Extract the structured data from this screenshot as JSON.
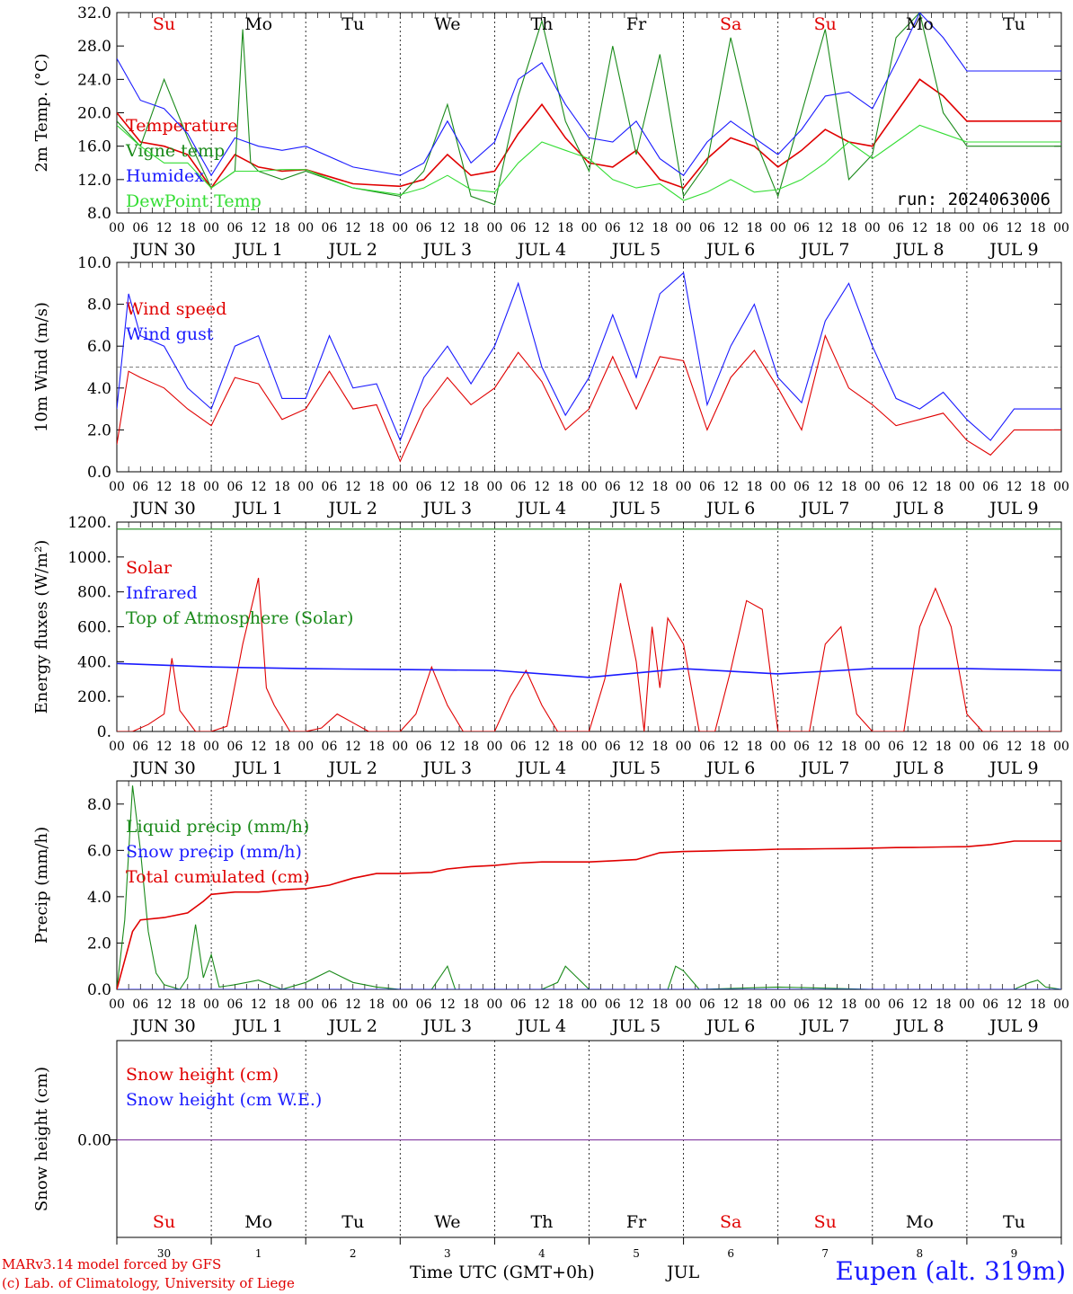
{
  "footer": {
    "credit_line1": "MARv3.14 model forced by GFS",
    "credit_line2": "(c) Lab. of Climatology, University of Liege",
    "x_axis_label": "Time UTC (GMT+0h)",
    "month_label": "JUL",
    "station": "Eupen (alt. 319m)"
  },
  "colors": {
    "red": "#e00000",
    "blue": "#1a1aff",
    "green": "#1a8a1a",
    "lightgreen": "#33dd33",
    "purple": "#7a2a9a"
  },
  "chart_data": [
    {
      "type": "line",
      "ylabel": "2m Temp. (°C)",
      "ylim": [
        8,
        32
      ],
      "yticks": [
        "8.0",
        "12.0",
        "16.0",
        "20.0",
        "24.0",
        "28.0",
        "32.0"
      ],
      "day_abbrevs": [
        "Su",
        "Mo",
        "Tu",
        "We",
        "Th",
        "Fr",
        "Sa",
        "Su",
        "Mo",
        "Tu"
      ],
      "annotation": "run: 2024063006",
      "series": [
        {
          "name": "Temperature",
          "color": "red",
          "x": [
            0,
            6,
            12,
            18,
            24,
            30,
            36,
            42,
            48,
            60,
            72,
            78,
            84,
            90,
            96,
            102,
            108,
            114,
            120,
            126,
            132,
            138,
            144,
            150,
            156,
            162,
            168,
            174,
            180,
            186,
            192,
            198,
            204,
            210,
            216,
            222,
            228,
            234,
            240
          ],
          "values": [
            20,
            16.5,
            16,
            15,
            11,
            15,
            13.5,
            13,
            13.2,
            11.5,
            11.2,
            12,
            15,
            12.5,
            13,
            17.5,
            21,
            17,
            14,
            13.5,
            15.5,
            12,
            11,
            14.5,
            17,
            16,
            13.5,
            15.5,
            18,
            16.5,
            16,
            20,
            24,
            22,
            19,
            19,
            19,
            19,
            19
          ]
        },
        {
          "name": "Vigne temp",
          "color": "green",
          "x": [
            0,
            6,
            12,
            18,
            24,
            30,
            32,
            34,
            36,
            42,
            48,
            60,
            72,
            78,
            84,
            90,
            96,
            102,
            108,
            114,
            120,
            126,
            132,
            138,
            144,
            150,
            156,
            162,
            168,
            174,
            180,
            186,
            192,
            198,
            204,
            210,
            216,
            222,
            228,
            234,
            240
          ],
          "values": [
            19,
            16,
            24,
            17,
            11,
            13,
            30,
            14,
            13,
            12,
            13,
            11,
            10,
            13,
            21,
            10,
            9,
            22,
            31,
            19,
            13,
            28,
            15,
            27,
            10,
            14,
            29,
            17,
            10,
            20,
            30,
            12,
            15,
            29,
            32,
            20,
            16,
            16,
            16,
            16,
            16
          ]
        },
        {
          "name": "Humidex",
          "color": "blue",
          "x": [
            0,
            6,
            12,
            18,
            24,
            30,
            36,
            42,
            48,
            60,
            72,
            78,
            84,
            90,
            96,
            102,
            108,
            114,
            120,
            126,
            132,
            138,
            144,
            150,
            156,
            162,
            168,
            174,
            180,
            186,
            192,
            198,
            204,
            210,
            216,
            222,
            228,
            234,
            240
          ],
          "values": [
            26.5,
            21.5,
            20.5,
            17.5,
            12.5,
            17,
            16,
            15.5,
            16,
            13.5,
            12.5,
            14,
            19,
            14,
            16.5,
            24,
            26,
            21,
            17,
            16.5,
            19,
            14.5,
            12.5,
            16.5,
            19,
            17,
            15,
            18,
            22,
            22.5,
            20.5,
            26,
            32,
            29,
            25,
            25,
            25,
            25,
            25
          ]
        },
        {
          "name": "DewPoint Temp",
          "color": "lightgreen",
          "x": [
            0,
            6,
            12,
            18,
            24,
            30,
            36,
            42,
            48,
            60,
            72,
            78,
            84,
            90,
            96,
            102,
            108,
            114,
            120,
            126,
            132,
            138,
            144,
            150,
            156,
            162,
            168,
            174,
            180,
            186,
            192,
            198,
            204,
            210,
            216,
            222,
            228,
            234,
            240
          ],
          "values": [
            18.5,
            16,
            14,
            14,
            11,
            13,
            13,
            13.2,
            13.2,
            11,
            10.2,
            11,
            12.5,
            10.8,
            10.5,
            14,
            16.5,
            15.5,
            14.5,
            12,
            11,
            11.5,
            9.5,
            10.5,
            12,
            10.5,
            10.8,
            12,
            14,
            16.5,
            14.5,
            16.5,
            18.5,
            17.5,
            16.5,
            16.5,
            16.5,
            16.5,
            16.5
          ]
        }
      ]
    },
    {
      "type": "line",
      "ylabel": "10m Wind (m/s)",
      "ylim": [
        0,
        10
      ],
      "yticks": [
        "0.0",
        "2.0",
        "4.0",
        "6.0",
        "8.0",
        "10.0"
      ],
      "reference_line": 5,
      "series": [
        {
          "name": "Wind speed",
          "color": "red",
          "x": [
            0,
            3,
            6,
            12,
            18,
            24,
            30,
            36,
            42,
            48,
            54,
            60,
            66,
            72,
            78,
            84,
            90,
            96,
            102,
            108,
            114,
            120,
            126,
            132,
            138,
            144,
            150,
            156,
            162,
            168,
            174,
            180,
            186,
            192,
            198,
            204,
            210,
            216,
            222,
            228,
            234,
            240
          ],
          "values": [
            1.3,
            4.8,
            4.5,
            4,
            3,
            2.2,
            4.5,
            4.2,
            2.5,
            3,
            4.8,
            3,
            3.2,
            0.5,
            3,
            4.5,
            3.2,
            4,
            5.7,
            4.3,
            2,
            3,
            5.5,
            3,
            5.5,
            5.3,
            2,
            4.5,
            5.8,
            4,
            2,
            6.5,
            4,
            3.2,
            2.2,
            2.5,
            2.8,
            1.5,
            0.8,
            2,
            2,
            2
          ]
        },
        {
          "name": "Wind gust",
          "color": "blue",
          "x": [
            0,
            3,
            6,
            12,
            18,
            24,
            30,
            36,
            42,
            48,
            54,
            60,
            66,
            72,
            78,
            84,
            90,
            96,
            102,
            108,
            114,
            120,
            126,
            132,
            138,
            144,
            150,
            156,
            162,
            168,
            174,
            180,
            186,
            192,
            198,
            204,
            210,
            216,
            222,
            228,
            234,
            240
          ],
          "values": [
            3.0,
            8.5,
            6.5,
            6,
            4,
            3,
            6,
            6.5,
            3.5,
            3.5,
            6.5,
            4,
            4.2,
            1.5,
            4.5,
            6,
            4.2,
            6,
            9,
            5,
            2.7,
            4.5,
            7.5,
            4.5,
            8.5,
            9.5,
            3.2,
            6,
            8,
            4.5,
            3.3,
            7.2,
            9,
            6,
            3.5,
            3,
            3.8,
            2.5,
            1.5,
            3,
            3,
            3
          ]
        }
      ]
    },
    {
      "type": "line",
      "ylabel": "Energy fluxes (W/m²)",
      "ylim": [
        0,
        1200
      ],
      "yticks": [
        "0.",
        "200.",
        "400.",
        "600.",
        "800.",
        "1000.",
        "1200."
      ],
      "series": [
        {
          "name": "Solar",
          "color": "red",
          "x": [
            0,
            4,
            8,
            12,
            14,
            16,
            20,
            24,
            28,
            32,
            36,
            38,
            40,
            44,
            48,
            52,
            56,
            60,
            64,
            68,
            72,
            76,
            80,
            84,
            88,
            92,
            96,
            100,
            104,
            108,
            112,
            116,
            120,
            124,
            128,
            132,
            134,
            136,
            138,
            140,
            144,
            148,
            152,
            156,
            160,
            164,
            168,
            172,
            176,
            180,
            184,
            188,
            192,
            196,
            200,
            204,
            208,
            212,
            216,
            220,
            224,
            228,
            232,
            236,
            240
          ],
          "values": [
            0,
            0,
            40,
            100,
            420,
            120,
            0,
            0,
            30,
            500,
            880,
            250,
            150,
            0,
            0,
            20,
            100,
            50,
            0,
            0,
            0,
            100,
            370,
            150,
            0,
            0,
            0,
            200,
            350,
            150,
            0,
            0,
            0,
            300,
            850,
            400,
            0,
            600,
            250,
            650,
            500,
            0,
            0,
            350,
            750,
            700,
            0,
            0,
            0,
            500,
            600,
            100,
            0,
            0,
            0,
            600,
            820,
            600,
            100,
            0,
            0,
            0,
            0,
            0,
            0
          ]
        },
        {
          "name": "Infrared",
          "color": "blue",
          "x": [
            0,
            24,
            48,
            72,
            96,
            120,
            144,
            168,
            192,
            216,
            240
          ],
          "values": [
            390,
            370,
            360,
            355,
            350,
            310,
            360,
            330,
            360,
            360,
            350
          ]
        },
        {
          "name": "Top of Atmosphere (Solar)",
          "color": "green",
          "x": [
            0,
            24,
            48,
            72,
            96,
            120,
            144,
            168,
            192,
            216,
            240
          ],
          "values": [
            1160,
            1160,
            1160,
            1160,
            1160,
            1160,
            1160,
            1160,
            1160,
            1160,
            1160
          ]
        }
      ]
    },
    {
      "type": "line",
      "ylabel": "Precip (mm/h)",
      "ylim": [
        0,
        9
      ],
      "yticks": [
        "0.0",
        "2.0",
        "4.0",
        "6.0",
        "8.0"
      ],
      "series": [
        {
          "name": "Liquid precip (mm/h)",
          "color": "green",
          "x": [
            0,
            2,
            4,
            6,
            8,
            10,
            12,
            16,
            18,
            20,
            22,
            24,
            26,
            30,
            36,
            42,
            48,
            54,
            60,
            66,
            72,
            80,
            84,
            86,
            90,
            96,
            108,
            112,
            114,
            120,
            138,
            140,
            142,
            144,
            148,
            168,
            192,
            216,
            222,
            228,
            232,
            234,
            236,
            240
          ],
          "values": [
            0,
            3,
            8.8,
            6,
            2.5,
            0.7,
            0.2,
            0,
            0.5,
            2.8,
            0.5,
            1.5,
            0.1,
            0.2,
            0.4,
            0,
            0.3,
            0.8,
            0.3,
            0.1,
            0,
            0,
            1,
            0,
            0,
            0,
            0,
            0.3,
            1,
            0,
            0,
            0,
            1,
            0.8,
            0,
            0.1,
            0,
            0,
            0,
            0,
            0.3,
            0.4,
            0.1,
            0
          ]
        },
        {
          "name": "Snow precip (mm/h)",
          "color": "blue",
          "x": [
            0,
            240
          ],
          "values": [
            0,
            0
          ]
        },
        {
          "name": "Total cumulated (cm)",
          "color": "red",
          "x": [
            0,
            4,
            6,
            12,
            18,
            22,
            24,
            30,
            36,
            42,
            48,
            54,
            60,
            66,
            72,
            80,
            84,
            90,
            96,
            102,
            108,
            114,
            120,
            126,
            132,
            138,
            144,
            150,
            156,
            162,
            168,
            174,
            180,
            186,
            192,
            198,
            204,
            210,
            216,
            222,
            228,
            234,
            240
          ],
          "values": [
            0,
            2.5,
            3,
            3.1,
            3.3,
            3.8,
            4.1,
            4.2,
            4.2,
            4.3,
            4.35,
            4.5,
            4.8,
            5.0,
            5.0,
            5.05,
            5.2,
            5.3,
            5.35,
            5.45,
            5.5,
            5.5,
            5.5,
            5.55,
            5.6,
            5.9,
            5.95,
            5.97,
            6.0,
            6.02,
            6.05,
            6.06,
            6.07,
            6.08,
            6.1,
            6.12,
            6.13,
            6.15,
            6.16,
            6.25,
            6.4,
            6.4,
            6.4
          ]
        }
      ]
    },
    {
      "type": "line",
      "ylabel": "Snow height (cm)",
      "yticks": [
        "0.00"
      ],
      "series": [
        {
          "name": "Snow height (cm)",
          "color": "red",
          "x": [
            0,
            240
          ],
          "values": [
            0,
            0
          ]
        },
        {
          "name": "Snow height (cm W.E.)",
          "color": "blue",
          "x": [
            0,
            240
          ],
          "values": [
            0,
            0
          ]
        }
      ]
    }
  ],
  "axis": {
    "hour_ticks": [
      "00",
      "06",
      "12",
      "18"
    ],
    "last_tick": "00",
    "date_labels": [
      "JUN 30",
      "JUL  1",
      "JUL  2",
      "JUL  3",
      "JUL  4",
      "JUL  5",
      "JUL  6",
      "JUL  7",
      "JUL  8",
      "JUL  9"
    ],
    "day_numbers": [
      "30",
      "1",
      "2",
      "3",
      "4",
      "5",
      "6",
      "7",
      "8",
      "9"
    ],
    "weekend_days": [
      "Su",
      "Sa"
    ]
  }
}
